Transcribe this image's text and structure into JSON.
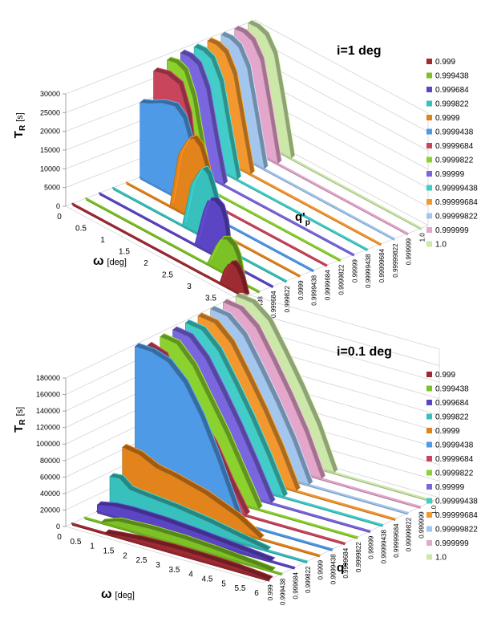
{
  "chart_data": [
    {
      "type": "3d-area",
      "title": "i=1 deg",
      "zlabel": "T",
      "zlabel_sub": "R",
      "zlabel_unit": "[s]",
      "xlabel": "ω",
      "xlabel_unit": "[deg]",
      "ylabel": "q'",
      "ylabel_sub": "p",
      "zlim": [
        0,
        30000
      ],
      "z_ticks": [
        "0",
        "5000",
        "10000",
        "15000",
        "20000",
        "25000",
        "30000"
      ],
      "x_ticks": [
        "0",
        "0.5",
        "1",
        "1.5",
        "2",
        "2.5",
        "3",
        "3.5",
        "4"
      ],
      "xlim": [
        0,
        4
      ],
      "y_ticks": [
        "0.999",
        "0.999438",
        "0.999684",
        "0.999822",
        "0.9999",
        "0.9999438",
        "0.9999684",
        "0.9999822",
        "0.99999",
        "0.99999438",
        "0.99999684",
        "0.99999822",
        "0.999999",
        "1.0"
      ],
      "series": [
        {
          "name": "0.999",
          "color": "#9e2a32",
          "x": [
            3.4,
            3.5,
            3.6,
            3.7,
            3.8,
            3.9,
            4.0
          ],
          "values": [
            0,
            4000,
            6200,
            7000,
            6200,
            4000,
            0
          ]
        },
        {
          "name": "0.999438",
          "color": "#7cc125",
          "x": [
            2.8,
            3.0,
            3.1,
            3.25,
            3.4,
            3.5,
            3.6
          ],
          "values": [
            0,
            6000,
            8300,
            9300,
            8300,
            6000,
            0
          ]
        },
        {
          "name": "0.999684",
          "color": "#5b45c4",
          "x": [
            2.2,
            2.4,
            2.5,
            2.65,
            2.8,
            2.9,
            3.0
          ],
          "values": [
            0,
            10000,
            13500,
            14500,
            13500,
            10000,
            0
          ]
        },
        {
          "name": "0.999822",
          "color": "#37c0bc",
          "x": [
            1.6,
            1.8,
            2.0,
            2.1,
            2.2,
            2.35,
            2.5
          ],
          "values": [
            0,
            12000,
            17000,
            18000,
            17000,
            12000,
            0
          ]
        },
        {
          "name": "0.9999",
          "color": "#e2831b",
          "x": [
            1.0,
            1.2,
            1.4,
            1.55,
            1.7,
            1.85,
            2.0
          ],
          "values": [
            0,
            15000,
            20000,
            21500,
            20000,
            15000,
            0
          ]
        },
        {
          "name": "0.9999438",
          "color": "#4f9ae6",
          "x": [
            0,
            0.2,
            0.5,
            0.8,
            1.0,
            1.2,
            1.4
          ],
          "values": [
            20000,
            21000,
            23000,
            24000,
            22000,
            15000,
            0
          ]
        },
        {
          "name": "0.9999684",
          "color": "#c9455c",
          "x": [
            0,
            0.3,
            0.6,
            0.8,
            1.0
          ],
          "values": [
            27000,
            28000,
            27000,
            20000,
            0
          ]
        },
        {
          "name": "0.9999822",
          "color": "#8cd22f",
          "x": [
            0,
            0.2,
            0.4,
            0.6,
            0.8,
            1.0
          ],
          "values": [
            28500,
            29000,
            28000,
            22000,
            10000,
            0
          ]
        },
        {
          "name": "0.99999",
          "color": "#7a66de",
          "x": [
            0,
            0.2,
            0.4,
            0.6,
            0.8,
            1.0
          ],
          "values": [
            29000,
            29200,
            28200,
            23000,
            11000,
            0
          ]
        },
        {
          "name": "0.99999438",
          "color": "#43cdc8",
          "x": [
            0,
            0.2,
            0.4,
            0.6,
            0.8,
            1.0
          ],
          "values": [
            29200,
            29400,
            28400,
            23500,
            11500,
            0
          ]
        },
        {
          "name": "0.99999684",
          "color": "#f3982f",
          "x": [
            0,
            0.2,
            0.4,
            0.6,
            0.8,
            1.0
          ],
          "values": [
            29400,
            29600,
            28600,
            24000,
            12000,
            0
          ]
        },
        {
          "name": "0.99999822",
          "color": "#a3c6ee",
          "x": [
            0,
            0.2,
            0.4,
            0.6,
            0.8,
            1.0
          ],
          "values": [
            29600,
            29800,
            28800,
            24500,
            12500,
            0
          ]
        },
        {
          "name": "0.999999",
          "color": "#e4a6cb",
          "x": [
            0,
            0.2,
            0.4,
            0.6,
            0.8,
            1.0
          ],
          "values": [
            29800,
            30000,
            29000,
            25000,
            13000,
            0
          ]
        },
        {
          "name": "1.0",
          "color": "#cbe8a8",
          "x": [
            0,
            0.2,
            0.4,
            0.6,
            0.8,
            1.0
          ],
          "values": [
            29900,
            30000,
            29100,
            25200,
            13200,
            0
          ]
        }
      ]
    },
    {
      "type": "3d-area",
      "title": "i=0.1 deg",
      "zlabel": "T",
      "zlabel_sub": "R",
      "zlabel_unit": "[s]",
      "xlabel": "ω",
      "xlabel_unit": "[deg]",
      "ylabel": "q'",
      "ylabel_sub": "",
      "zlim": [
        0,
        180000
      ],
      "z_ticks": [
        "0",
        "20000",
        "40000",
        "60000",
        "80000",
        "100000",
        "120000",
        "140000",
        "160000",
        "180000"
      ],
      "x_ticks": [
        "0",
        "0.5",
        "1",
        "1.5",
        "2",
        "2.5",
        "3",
        "3.5",
        "4",
        "4.5",
        "5",
        "5.5",
        "6"
      ],
      "xlim": [
        0,
        6
      ],
      "y_ticks": [
        "0.999",
        "0.999438",
        "0.999684",
        "0.999822",
        "0.9999",
        "0.9999438",
        "0.9999684",
        "0.9999822",
        "0.99999",
        "0.99999438",
        "0.99999684",
        "0.99999822",
        "0.999999",
        "1.0"
      ],
      "series": [
        {
          "name": "0.999",
          "color": "#9e2a32",
          "x": [
            1.0,
            2.0,
            3.0,
            4.0,
            5.0,
            5.6,
            6.0
          ],
          "values": [
            0,
            4000,
            5500,
            5000,
            3500,
            1500,
            0
          ]
        },
        {
          "name": "0.999438",
          "color": "#7cc125",
          "x": [
            0.5,
            1.0,
            2.0,
            3.0,
            4.0,
            5.0,
            5.7
          ],
          "values": [
            0,
            7000,
            9000,
            8500,
            6000,
            2500,
            0
          ]
        },
        {
          "name": "0.999684",
          "color": "#5b45c4",
          "x": [
            0,
            0.5,
            1.0,
            2.0,
            3.0,
            4.0,
            4.8,
            5.3
          ],
          "values": [
            8000,
            12000,
            13000,
            12000,
            9000,
            5000,
            2000,
            0
          ]
        },
        {
          "name": "0.999822",
          "color": "#37c0bc",
          "x": [
            0,
            0.3,
            0.6,
            1.0,
            2.0,
            3.0,
            4.0,
            4.8
          ],
          "values": [
            35000,
            36000,
            26000,
            24000,
            20000,
            14000,
            6000,
            0
          ]
        },
        {
          "name": "0.9999",
          "color": "#e2831b",
          "x": [
            0,
            0.5,
            1.0,
            1.2,
            1.5,
            2.5,
            3.5,
            4.2
          ],
          "values": [
            63000,
            60000,
            50000,
            48000,
            46000,
            35000,
            18000,
            0
          ]
        },
        {
          "name": "0.9999438",
          "color": "#4f9ae6",
          "x": [
            0,
            0.5,
            1.0,
            1.5,
            2.0,
            2.5,
            3.2
          ],
          "values": [
            178000,
            177000,
            170000,
            150000,
            115000,
            70000,
            0
          ]
        },
        {
          "name": "0.9999684",
          "color": "#c9455c",
          "x": [
            0,
            0.5,
            1.0,
            1.5,
            2.0,
            2.5,
            3.0
          ],
          "values": [
            172000,
            165000,
            120000,
            100000,
            75000,
            35000,
            0
          ]
        },
        {
          "name": "0.9999822",
          "color": "#8cd22f",
          "x": [
            0,
            0.5,
            1.0,
            1.5,
            2.0,
            2.5,
            3.0
          ],
          "values": [
            175000,
            172000,
            150000,
            115000,
            80000,
            40000,
            0
          ]
        },
        {
          "name": "0.99999",
          "color": "#7a66de",
          "x": [
            0,
            0.5,
            1.0,
            1.5,
            2.0,
            2.5,
            3.0
          ],
          "values": [
            176000,
            173000,
            152000,
            118000,
            82000,
            42000,
            0
          ]
        },
        {
          "name": "0.99999438",
          "color": "#43cdc8",
          "x": [
            0,
            0.5,
            1.0,
            1.5,
            2.0,
            2.5,
            3.0
          ],
          "values": [
            177000,
            174000,
            154000,
            120000,
            84000,
            44000,
            0
          ]
        },
        {
          "name": "0.99999684",
          "color": "#f3982f",
          "x": [
            0,
            0.5,
            1.0,
            1.5,
            2.0,
            2.5,
            3.0
          ],
          "values": [
            178000,
            175000,
            156000,
            122000,
            86000,
            46000,
            0
          ]
        },
        {
          "name": "0.99999822",
          "color": "#a3c6ee",
          "x": [
            0,
            0.5,
            1.0,
            1.5,
            2.0,
            2.5,
            3.0
          ],
          "values": [
            179000,
            176000,
            158000,
            124000,
            88000,
            48000,
            0
          ]
        },
        {
          "name": "0.999999",
          "color": "#e4a6cb",
          "x": [
            0,
            0.5,
            1.0,
            1.5,
            2.0,
            2.5,
            3.0
          ],
          "values": [
            180000,
            177000,
            160000,
            126000,
            90000,
            50000,
            0
          ]
        },
        {
          "name": "1.0",
          "color": "#cbe8a8",
          "x": [
            0,
            0.5,
            1.0,
            1.5,
            2.0,
            2.5,
            3.0
          ],
          "values": [
            180000,
            177500,
            161000,
            127000,
            91000,
            51000,
            0
          ]
        }
      ]
    }
  ],
  "colors": {
    "grid": "#d4d4d4",
    "axis": "#a0a0a0",
    "text": "#000000"
  }
}
